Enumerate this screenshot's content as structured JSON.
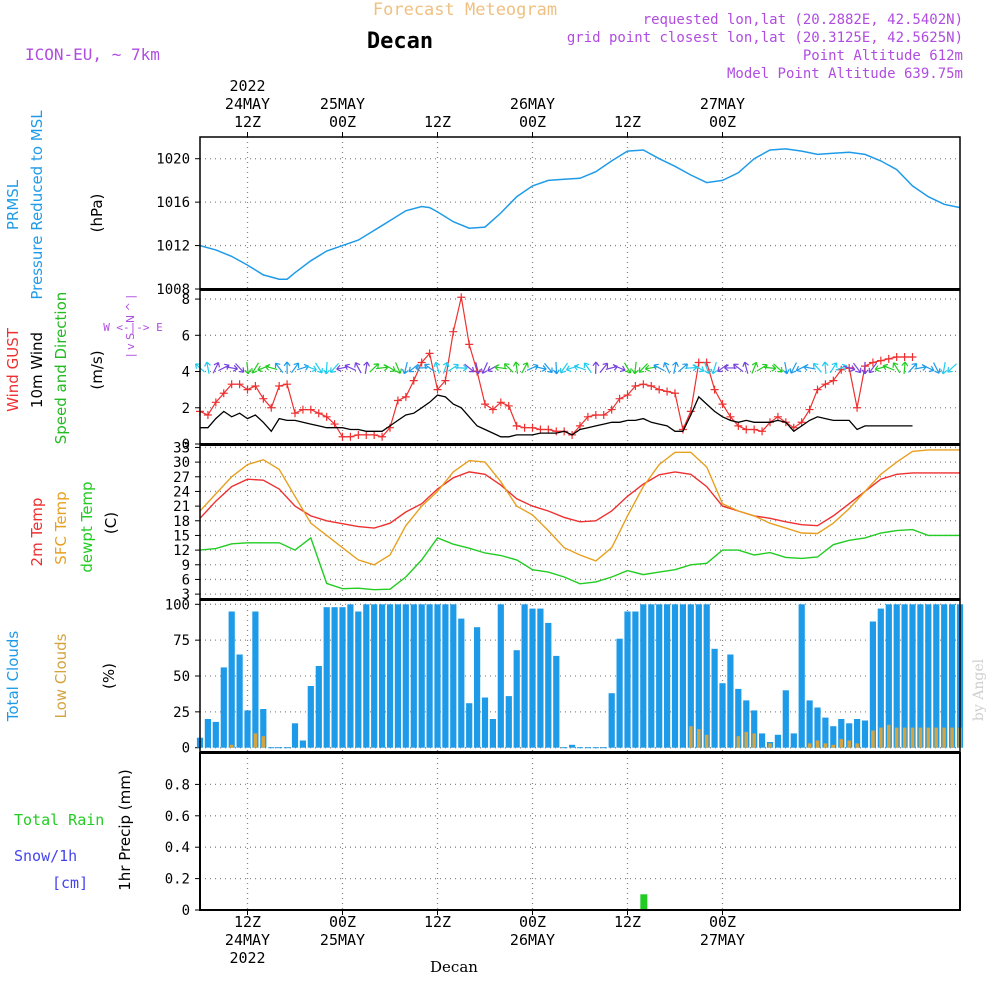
{
  "header": {
    "title": "Forecast Meteogram",
    "location": "Decan",
    "model": "ICON-EU, ~ 7km",
    "requested": "requested lon,lat (20.2882E, 42.5402N)",
    "gridpoint": "grid point closest lon,lat (20.3125E, 42.5625N)",
    "point_alt": "Point Altitude 612m",
    "model_alt": "Model Point Altitude 639.75m",
    "footer_location": "Decan",
    "watermark": "by Angel"
  },
  "time_axis": {
    "start_hour": 6,
    "end_hour": 102,
    "year_label": "2022",
    "ticks": [
      {
        "hour": 12,
        "top": [
          "2022",
          "24MAY",
          "12Z"
        ],
        "bottom": [
          "12Z",
          "24MAY",
          "2022"
        ]
      },
      {
        "hour": 24,
        "top": [
          "25MAY",
          "00Z"
        ],
        "bottom": [
          "00Z",
          "25MAY"
        ]
      },
      {
        "hour": 36,
        "top": [
          "12Z"
        ],
        "bottom": [
          "12Z"
        ]
      },
      {
        "hour": 48,
        "top": [
          "26MAY",
          "00Z"
        ],
        "bottom": [
          "00Z",
          "26MAY"
        ]
      },
      {
        "hour": 60,
        "top": [
          "12Z"
        ],
        "bottom": [
          "12Z"
        ]
      },
      {
        "hour": 72,
        "top": [
          "27MAY",
          "00Z"
        ],
        "bottom": [
          "00Z",
          "27MAY"
        ]
      }
    ]
  },
  "colors": {
    "pressure": "#1E9BE8",
    "gust": "#EE3030",
    "wind": "#000000",
    "wind_label": "#22BB22",
    "temp2m": "#EE3030",
    "sfc": "#E8A020",
    "dewpt": "#22CC22",
    "total_clouds": "#1E9BE8",
    "low_clouds": "#D4A440",
    "rain": "#22CC22",
    "snow": "#4444EE",
    "header_orange": "#F0C080",
    "header_purple": "#B04CE0",
    "grid": "#888888"
  },
  "chart_data": [
    {
      "type": "line",
      "name": "pressure",
      "labels": [
        "PRMSL",
        "Pressure Reduced to MSL",
        "(hPa)"
      ],
      "ylim": [
        1008,
        1022
      ],
      "yticks": [
        1008,
        1012,
        1016,
        1020
      ],
      "x": [
        6,
        8,
        10,
        12,
        14,
        16,
        17,
        18,
        20,
        22,
        24,
        26,
        28,
        30,
        32,
        34,
        35,
        36,
        38,
        40,
        42,
        44,
        46,
        48,
        50,
        52,
        54,
        56,
        58,
        60,
        62,
        64,
        66,
        68,
        70,
        72,
        74,
        76,
        78,
        80,
        82,
        84,
        86,
        88,
        90,
        92,
        94,
        96,
        98,
        100,
        102
      ],
      "series": [
        {
          "name": "PRMSL",
          "values": [
            1012,
            1011.6,
            1011,
            1010.2,
            1009.3,
            1008.9,
            1008.9,
            1009.5,
            1010.6,
            1011.5,
            1012,
            1012.5,
            1013.4,
            1014.3,
            1015.2,
            1015.6,
            1015.5,
            1015.1,
            1014.2,
            1013.6,
            1013.7,
            1015,
            1016.5,
            1017.5,
            1018,
            1018.1,
            1018.2,
            1018.8,
            1019.8,
            1020.7,
            1020.8,
            1020,
            1019.3,
            1018.5,
            1017.8,
            1018,
            1018.7,
            1020,
            1020.8,
            1020.9,
            1020.7,
            1020.4,
            1020.5,
            1020.6,
            1020.4,
            1019.8,
            1019,
            1017.5,
            1016.5,
            1015.8,
            1015.5
          ]
        }
      ]
    },
    {
      "type": "line",
      "name": "wind",
      "labels": [
        "Wind GUST",
        "10m Wind",
        "Speed and Direction",
        "(m/s)"
      ],
      "compass": [
        "N",
        "W <-|-> E",
        "S"
      ],
      "ylim": [
        0,
        8.5
      ],
      "yticks": [
        0,
        2,
        4,
        6,
        8
      ],
      "x": [
        6,
        7,
        8,
        9,
        10,
        11,
        12,
        13,
        14,
        15,
        16,
        17,
        18,
        19,
        20,
        21,
        22,
        23,
        24,
        25,
        26,
        27,
        28,
        29,
        30,
        31,
        32,
        33,
        34,
        35,
        36,
        37,
        38,
        39,
        40,
        41,
        42,
        43,
        44,
        45,
        46,
        47,
        48,
        49,
        50,
        51,
        52,
        53,
        54,
        55,
        56,
        57,
        58,
        59,
        60,
        61,
        62,
        63,
        64,
        65,
        66,
        67,
        68,
        69,
        70,
        71,
        72,
        73,
        74,
        75,
        76,
        77,
        78,
        79,
        80,
        81,
        82,
        83,
        84,
        85,
        86,
        87,
        88,
        89,
        90,
        91,
        92,
        93,
        94,
        95,
        96
      ],
      "series": [
        {
          "name": "Wind GUST",
          "values": [
            1.8,
            1.6,
            2.3,
            2.8,
            3.3,
            3.3,
            3.0,
            3.2,
            2.5,
            2.0,
            3.2,
            3.3,
            1.7,
            1.9,
            1.9,
            1.7,
            1.5,
            1.1,
            0.4,
            0.4,
            0.5,
            0.5,
            0.5,
            0.4,
            0.9,
            2.4,
            2.6,
            3.5,
            4.5,
            5.0,
            3.0,
            3.5,
            6.2,
            8.1,
            5.5,
            4.0,
            2.2,
            1.9,
            2.3,
            2.1,
            1.0,
            0.9,
            0.9,
            0.8,
            0.8,
            0.7,
            0.7,
            0.5,
            1.0,
            1.5,
            1.6,
            1.6,
            1.9,
            2.5,
            2.7,
            3.2,
            3.3,
            3.2,
            3.0,
            2.9,
            2.8,
            0.8,
            1.8,
            4.5,
            4.5,
            3.0,
            2.2,
            1.5,
            1.0,
            0.8,
            0.8,
            0.7,
            1.2,
            1.5,
            1.2,
            0.9,
            1.2,
            1.9,
            3.0,
            3.3,
            3.5,
            4.1,
            4.2,
            2.0,
            4.3,
            4.5,
            4.6,
            4.7,
            4.8,
            4.8,
            4.8
          ]
        },
        {
          "name": "10m Wind",
          "values": [
            0.9,
            0.9,
            1.4,
            1.8,
            1.5,
            1.7,
            1.4,
            1.6,
            1.2,
            0.7,
            1.4,
            1.3,
            1.3,
            1.2,
            1.1,
            1.0,
            0.9,
            0.9,
            0.9,
            0.8,
            0.8,
            0.7,
            0.7,
            0.7,
            1.0,
            1.3,
            1.6,
            1.7,
            2.0,
            2.3,
            2.7,
            2.6,
            2.2,
            2.0,
            1.5,
            1.0,
            0.8,
            0.6,
            0.4,
            0.4,
            0.5,
            0.5,
            0.5,
            0.6,
            0.6,
            0.6,
            0.7,
            0.5,
            0.8,
            0.9,
            1.0,
            1.1,
            1.2,
            1.2,
            1.3,
            1.3,
            1.4,
            1.2,
            1.1,
            1.0,
            0.7,
            0.7,
            1.6,
            2.6,
            2.2,
            1.8,
            1.5,
            1.3,
            1.2,
            1.3,
            1.2,
            1.2,
            1.2,
            1.3,
            1.2,
            0.7,
            1.0,
            1.3,
            1.5,
            1.4,
            1.3,
            1.3,
            1.3,
            0.8,
            1.0,
            1.0,
            1.0,
            1.0,
            1.0,
            1.0,
            1.0
          ]
        }
      ]
    },
    {
      "type": "line",
      "name": "temperature",
      "labels": [
        "2m Temp",
        "SFC Temp",
        "dewpt Temp",
        "(C)"
      ],
      "ylim": [
        2,
        33.5
      ],
      "yticks": [
        3,
        6,
        9,
        12,
        15,
        18,
        21,
        24,
        27,
        30,
        33
      ],
      "x": [
        6,
        8,
        10,
        12,
        14,
        16,
        18,
        20,
        22,
        24,
        26,
        28,
        30,
        32,
        34,
        36,
        38,
        40,
        42,
        44,
        46,
        48,
        50,
        52,
        54,
        56,
        58,
        60,
        62,
        64,
        66,
        68,
        70,
        72,
        74,
        76,
        78,
        80,
        82,
        84,
        86,
        88,
        90,
        92,
        94,
        96,
        98,
        100,
        102
      ],
      "series": [
        {
          "name": "2m Temp",
          "values": [
            18.5,
            22,
            25,
            26.5,
            26.3,
            24.5,
            21,
            19,
            18,
            17.4,
            16.8,
            16.5,
            17.5,
            19.8,
            21.5,
            24.5,
            26.8,
            28.0,
            27.5,
            25.3,
            22.5,
            21,
            20,
            18.7,
            17.8,
            18,
            20,
            23,
            25.5,
            27.4,
            28,
            27.5,
            25,
            21,
            20,
            19,
            18.5,
            17.8,
            17.2,
            17,
            19,
            21.5,
            24,
            26.5,
            27.5,
            27.8,
            27.8,
            27.8,
            27.8
          ]
        },
        {
          "name": "SFC Temp",
          "values": [
            20,
            23.5,
            27,
            29.5,
            30.5,
            28.5,
            23,
            17.5,
            15,
            12.5,
            10,
            9,
            11,
            17,
            21,
            24,
            28,
            30.3,
            30,
            26,
            21,
            19.2,
            16,
            12.5,
            11,
            9.8,
            12.5,
            19,
            25,
            29.5,
            32,
            32,
            29,
            21.5,
            20,
            19,
            17.5,
            16.5,
            15.5,
            15.4,
            17.5,
            20.5,
            24,
            27.5,
            30,
            32.2,
            32.5,
            32.5,
            32.5
          ]
        },
        {
          "name": "dewpt Temp",
          "values": [
            12,
            12.3,
            13.3,
            13.5,
            13.5,
            13.5,
            12,
            14.5,
            5.2,
            4.1,
            4.2,
            3.9,
            4,
            6.5,
            10,
            14.5,
            13.2,
            12.4,
            11.4,
            10.9,
            10,
            8,
            7.5,
            6.5,
            5.1,
            5.5,
            6.5,
            7.8,
            7,
            7.5,
            8,
            9,
            9.3,
            12,
            12,
            11,
            11.5,
            10.5,
            10.3,
            10.6,
            13.1,
            14,
            14.5,
            15.5,
            16,
            16.2,
            15,
            15,
            15
          ]
        }
      ]
    },
    {
      "type": "bar",
      "name": "clouds",
      "labels": [
        "Total Clouds",
        "Low Clouds",
        "(%)"
      ],
      "ylim": [
        -3,
        103
      ],
      "yticks": [
        0,
        25,
        50,
        75,
        100
      ],
      "x": [
        6,
        7,
        8,
        9,
        10,
        11,
        12,
        13,
        14,
        15,
        16,
        17,
        18,
        19,
        20,
        21,
        22,
        23,
        24,
        25,
        26,
        27,
        28,
        29,
        30,
        31,
        32,
        33,
        34,
        35,
        36,
        37,
        38,
        39,
        40,
        41,
        42,
        43,
        44,
        45,
        46,
        47,
        48,
        49,
        50,
        51,
        52,
        53,
        54,
        55,
        56,
        57,
        58,
        59,
        60,
        61,
        62,
        63,
        64,
        65,
        66,
        67,
        68,
        69,
        70,
        71,
        72,
        73,
        74,
        75,
        76,
        77,
        78,
        79,
        80,
        81,
        82,
        83,
        84,
        85,
        86,
        87,
        88,
        89,
        90,
        91,
        92,
        93,
        94,
        95,
        96,
        97,
        98,
        99,
        100,
        101,
        102
      ],
      "series": [
        {
          "name": "Total Clouds",
          "values": [
            7,
            20,
            18,
            56,
            95,
            65,
            26,
            95,
            27,
            0,
            0,
            0,
            17,
            5,
            43,
            57,
            98,
            98,
            98,
            100,
            95,
            100,
            100,
            100,
            100,
            100,
            100,
            100,
            100,
            100,
            100,
            100,
            100,
            90,
            31,
            84,
            35,
            20,
            100,
            36,
            68,
            100,
            97,
            97,
            87,
            64,
            0,
            2,
            0,
            0,
            0,
            0,
            38,
            76,
            95,
            95,
            100,
            100,
            100,
            100,
            100,
            100,
            100,
            100,
            100,
            69,
            45,
            65,
            41,
            33,
            26,
            10,
            4,
            9,
            40,
            10,
            100,
            33,
            28,
            21,
            15,
            20,
            17,
            20,
            19,
            88,
            97,
            100,
            100,
            100,
            100,
            100,
            100,
            100,
            100,
            100,
            100
          ]
        },
        {
          "name": "Low Clouds",
          "values": [
            0,
            0,
            0,
            0,
            2,
            0,
            0,
            10,
            8,
            0,
            0,
            0,
            0,
            0,
            0,
            0,
            0,
            0,
            0,
            0,
            0,
            0,
            0,
            0,
            0,
            0,
            0,
            0,
            0,
            0,
            0,
            0,
            0,
            0,
            0,
            0,
            0,
            0,
            0,
            0,
            0,
            0,
            0,
            0,
            0,
            0,
            0,
            0,
            0,
            0,
            0,
            0,
            0,
            0,
            0,
            0,
            0,
            0,
            0,
            0,
            0,
            0,
            15,
            13,
            9,
            0,
            0,
            0,
            8,
            11,
            10,
            0,
            3,
            0,
            0,
            0,
            0,
            3,
            5,
            3,
            2,
            6,
            5,
            3,
            0,
            12,
            14,
            16,
            14,
            14,
            14,
            14,
            14,
            14,
            14,
            14,
            14
          ]
        }
      ]
    },
    {
      "type": "bar",
      "name": "precipitation",
      "labels": [
        "1hr Precip (mm)"
      ],
      "legend": [
        "Total Rain",
        "Snow/1h",
        "[cm]"
      ],
      "ylim": [
        0,
        1.0
      ],
      "yticks": [
        0,
        0.2,
        0.4,
        0.6,
        0.8
      ],
      "x": [
        62
      ],
      "series": [
        {
          "name": "Total Rain",
          "values": [
            0.1
          ]
        }
      ]
    }
  ]
}
